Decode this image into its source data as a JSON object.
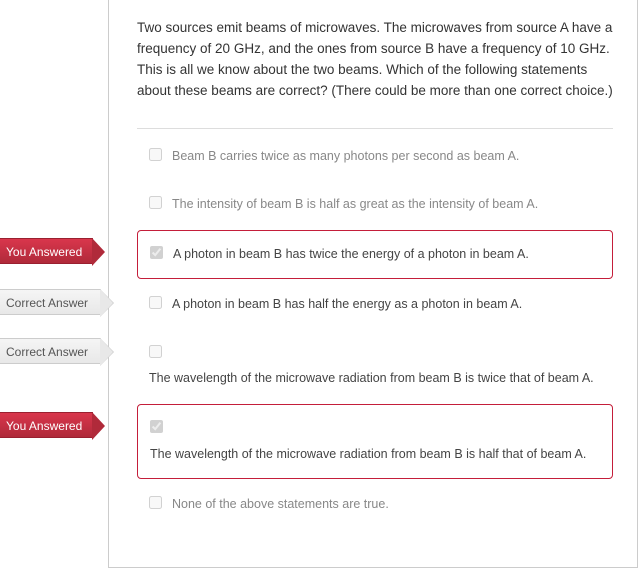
{
  "question": "Two sources emit beams of microwaves. The microwaves from source A have a frequency of 20 GHz, and the ones from source B have a frequency of 10 GHz. This is all we know about the two beams. Which of the following statements about these beams are correct? (There could be more than one correct choice.)",
  "flags": {
    "you_answered": "You Answered",
    "correct_answer": "Correct Answer"
  },
  "options": [
    {
      "text": "Beam B carries twice as many photons per second as beam A.",
      "checked": false,
      "flag": null,
      "boxed": false,
      "dark": false,
      "stacked": false
    },
    {
      "text": "The intensity of beam B is half as great as the intensity of beam A.",
      "checked": false,
      "flag": null,
      "boxed": false,
      "dark": false,
      "stacked": false
    },
    {
      "text": "A photon in beam B has twice the energy of a photon in beam A.",
      "checked": true,
      "flag": "you_answered",
      "boxed": true,
      "dark": true,
      "stacked": false
    },
    {
      "text": "A photon in beam B has half the energy as a photon in beam A.",
      "checked": false,
      "flag": "correct_answer",
      "boxed": false,
      "dark": true,
      "stacked": false
    },
    {
      "text": "The wavelength of the microwave radiation from beam B is twice that of beam A.",
      "checked": false,
      "flag": "correct_answer",
      "boxed": false,
      "dark": true,
      "stacked": true
    },
    {
      "text": "The wavelength of the microwave radiation from beam B is half that of beam A.",
      "checked": true,
      "flag": "you_answered",
      "boxed": true,
      "dark": true,
      "stacked": true
    },
    {
      "text": "None of the above statements are true.",
      "checked": false,
      "flag": null,
      "boxed": false,
      "dark": false,
      "stacked": false
    }
  ]
}
